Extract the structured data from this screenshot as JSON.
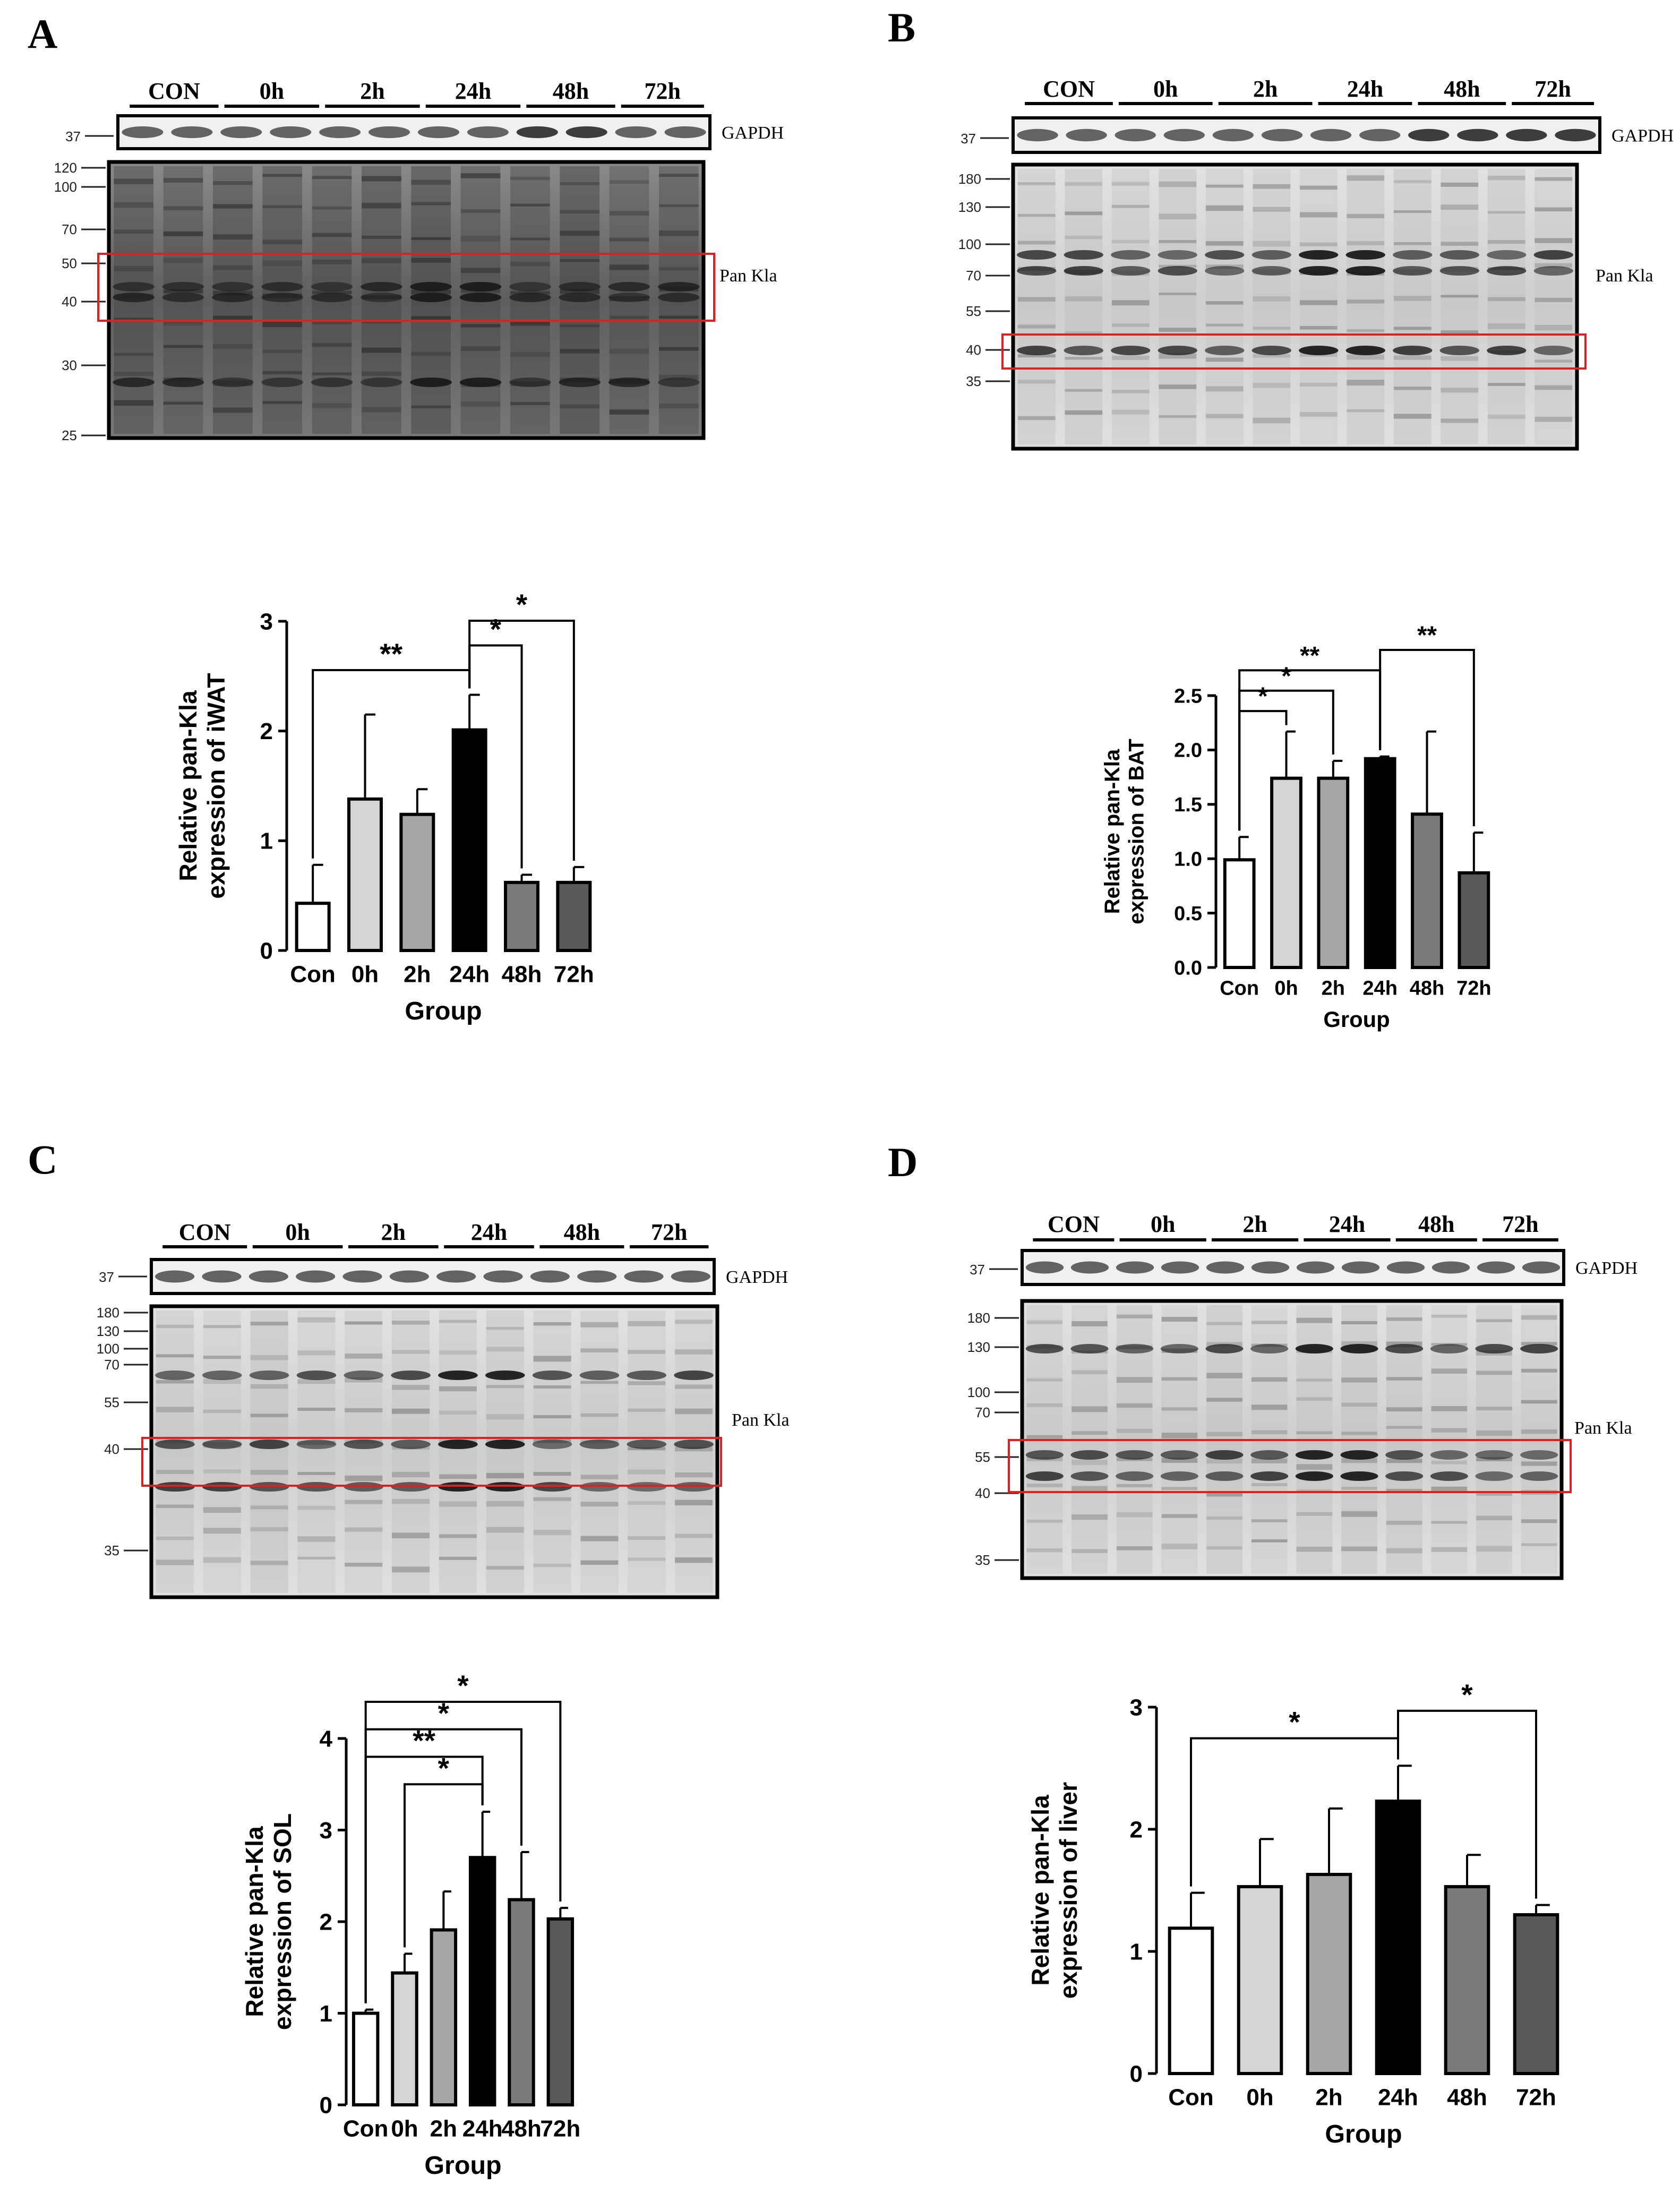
{
  "panels": [
    {
      "letter": "A",
      "blot": {
        "groups": [
          "CON",
          "0h",
          "2h",
          "24h",
          "48h",
          "72h"
        ],
        "gapdh_label": "GAPDH",
        "gapdh_marker": "37",
        "pan_label": "Pan Kla",
        "markers": [
          "120",
          "100",
          "70",
          "50",
          "40",
          "30",
          "25"
        ]
      }
    },
    {
      "letter": "B",
      "blot": {
        "groups": [
          "CON",
          "0h",
          "2h",
          "24h",
          "48h",
          "72h"
        ],
        "gapdh_label": "GAPDH",
        "gapdh_marker": "37",
        "pan_label": "Pan Kla",
        "markers": [
          "180",
          "130",
          "100",
          "70",
          "55",
          "40",
          "35"
        ]
      }
    },
    {
      "letter": "C",
      "blot": {
        "groups": [
          "CON",
          "0h",
          "2h",
          "24h",
          "48h",
          "72h"
        ],
        "gapdh_label": "GAPDH",
        "gapdh_marker": "37",
        "pan_label": "Pan Kla",
        "markers": [
          "180",
          "130",
          "100",
          "70",
          "55",
          "40",
          "35"
        ]
      }
    },
    {
      "letter": "D",
      "blot": {
        "groups": [
          "CON",
          "0h",
          "2h",
          "24h",
          "48h",
          "72h"
        ],
        "gapdh_label": "GAPDH",
        "gapdh_marker": "37",
        "pan_label": "Pan Kla",
        "markers": [
          "180",
          "130",
          "100",
          "70",
          "55",
          "40",
          "35"
        ]
      }
    }
  ],
  "chart_data": [
    {
      "panel": "A",
      "type": "bar",
      "categories": [
        "Con",
        "0h",
        "2h",
        "24h",
        "48h",
        "72h"
      ],
      "values": [
        0.43,
        1.38,
        1.24,
        2.01,
        0.62,
        0.62
      ],
      "errors": [
        0.35,
        0.77,
        0.23,
        0.32,
        0.07,
        0.14
      ],
      "ylim": [
        0,
        3
      ],
      "yticks": [
        "0",
        "1",
        "2",
        "3"
      ],
      "xlabel": "Group",
      "ylabel": [
        "Relative pan-Kla",
        "expression of iWAT"
      ],
      "significance": [
        {
          "from": "Con",
          "to": "24h",
          "label": "**"
        },
        {
          "from": "24h",
          "to": "48h",
          "label": "*"
        },
        {
          "from": "24h",
          "to": "72h",
          "label": "*"
        }
      ],
      "colors": [
        "#ffffff",
        "#d4d4d4",
        "#a6a6a6",
        "#000000",
        "#7a7a7a",
        "#595959"
      ]
    },
    {
      "panel": "B",
      "type": "bar",
      "categories": [
        "Con",
        "0h",
        "2h",
        "24h",
        "48h",
        "72h"
      ],
      "values": [
        0.99,
        1.74,
        1.74,
        1.92,
        1.41,
        0.87
      ],
      "errors": [
        0.21,
        0.43,
        0.16,
        0.02,
        0.76,
        0.37
      ],
      "ylim": [
        0,
        2.5
      ],
      "yticks": [
        "0.0",
        "0.5",
        "1.0",
        "1.5",
        "2.0",
        "2.5"
      ],
      "xlabel": "Group",
      "ylabel": [
        "Relative pan-Kla",
        "expression of BAT"
      ],
      "significance": [
        {
          "from": "Con",
          "to": "0h",
          "label": "*"
        },
        {
          "from": "Con",
          "to": "2h",
          "label": "*"
        },
        {
          "from": "Con",
          "to": "24h",
          "label": "**"
        },
        {
          "from": "24h",
          "to": "72h",
          "label": "**"
        }
      ],
      "colors": [
        "#ffffff",
        "#d4d4d4",
        "#a6a6a6",
        "#000000",
        "#7a7a7a",
        "#595959"
      ]
    },
    {
      "panel": "C",
      "type": "bar",
      "categories": [
        "Con",
        "0h",
        "2h",
        "24h",
        "48h",
        "72h"
      ],
      "values": [
        1.0,
        1.44,
        1.91,
        2.7,
        2.24,
        2.03
      ],
      "errors": [
        0.04,
        0.21,
        0.42,
        0.5,
        0.52,
        0.12
      ],
      "ylim": [
        0,
        4
      ],
      "yticks": [
        "0",
        "1",
        "2",
        "3",
        "4"
      ],
      "xlabel": "Group",
      "ylabel": [
        "Relative pan-Kla",
        "expression of SOL"
      ],
      "significance": [
        {
          "from": "0h",
          "to": "24h",
          "label": "*"
        },
        {
          "from": "Con",
          "to": "24h",
          "label": "**"
        },
        {
          "from": "Con",
          "to": "48h",
          "label": "*"
        },
        {
          "from": "Con",
          "to": "72h",
          "label": "*"
        }
      ],
      "colors": [
        "#ffffff",
        "#d4d4d4",
        "#a6a6a6",
        "#000000",
        "#7a7a7a",
        "#595959"
      ]
    },
    {
      "panel": "D",
      "type": "bar",
      "categories": [
        "Con",
        "0h",
        "2h",
        "24h",
        "48h",
        "72h"
      ],
      "values": [
        1.19,
        1.53,
        1.63,
        2.23,
        1.53,
        1.3
      ],
      "errors": [
        0.29,
        0.39,
        0.54,
        0.29,
        0.26,
        0.08
      ],
      "ylim": [
        0,
        3
      ],
      "yticks": [
        "0",
        "1",
        "2",
        "3"
      ],
      "xlabel": "Group",
      "ylabel": [
        "Relative pan-Kla",
        "expression of liver"
      ],
      "significance": [
        {
          "from": "Con",
          "to": "24h",
          "label": "*"
        },
        {
          "from": "24h",
          "to": "72h",
          "label": "*"
        }
      ],
      "colors": [
        "#ffffff",
        "#d4d4d4",
        "#a6a6a6",
        "#000000",
        "#7a7a7a",
        "#595959"
      ]
    }
  ]
}
